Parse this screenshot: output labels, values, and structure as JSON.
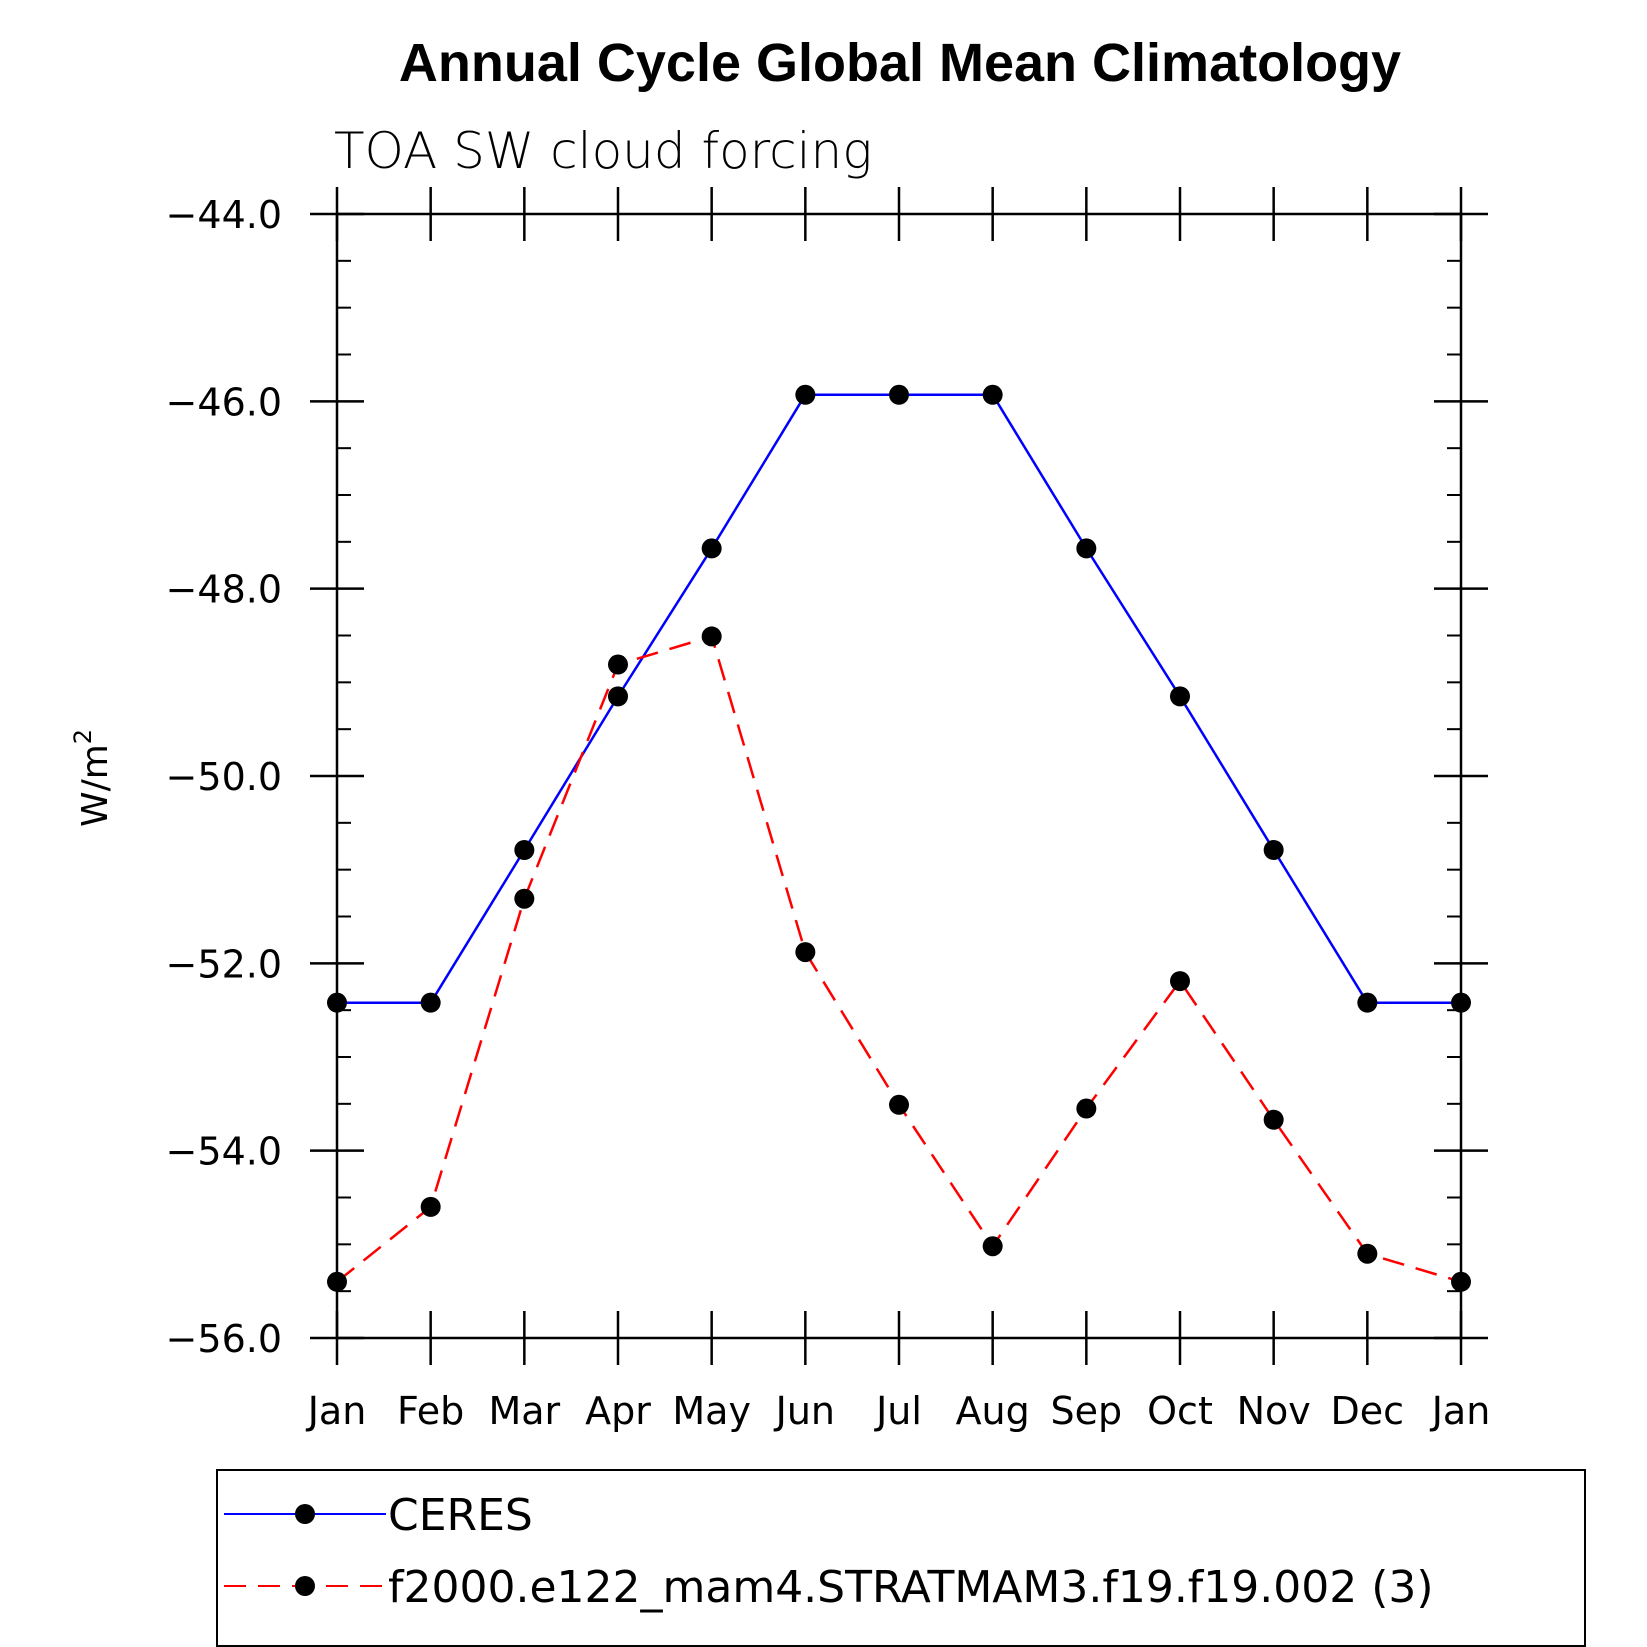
{
  "chart_data": {
    "type": "line",
    "title": "Annual Cycle Global Mean Climatology",
    "subtitle": "TOA SW cloud forcing",
    "xlabel": "",
    "ylabel": "W/m",
    "ylabel_superscript": "2",
    "categories": [
      "Jan",
      "Feb",
      "Mar",
      "Apr",
      "May",
      "Jun",
      "Jul",
      "Aug",
      "Sep",
      "Oct",
      "Nov",
      "Dec",
      "Jan"
    ],
    "ylim": [
      -56.0,
      -44.0
    ],
    "yticks": [
      -44.0,
      -46.0,
      -48.0,
      -50.0,
      -52.0,
      -54.0,
      -56.0
    ],
    "ytick_labels": [
      "−44.0",
      "−46.0",
      "−48.0",
      "−50.0",
      "−52.0",
      "−54.0",
      "−56.0"
    ],
    "grid": false,
    "legend_position": "bottom",
    "series": [
      {
        "name": "CERES",
        "color": "#0000ff",
        "dash": "solid",
        "marker": "filled-circle",
        "values": [
          -52.42,
          -52.42,
          -50.79,
          -49.15,
          -47.57,
          -45.93,
          -45.93,
          -45.93,
          -47.57,
          -49.15,
          -50.79,
          -52.42,
          -52.42
        ]
      },
      {
        "name": "f2000.e122_mam4.STRATMAM3.f19.f19.002 (3)",
        "color": "#ff0000",
        "dash": "dashed",
        "marker": "filled-circle",
        "values": [
          -55.4,
          -54.6,
          -51.31,
          -48.81,
          -48.51,
          -51.88,
          -53.51,
          -55.02,
          -53.55,
          -52.19,
          -53.67,
          -55.1,
          -55.4
        ]
      }
    ]
  }
}
